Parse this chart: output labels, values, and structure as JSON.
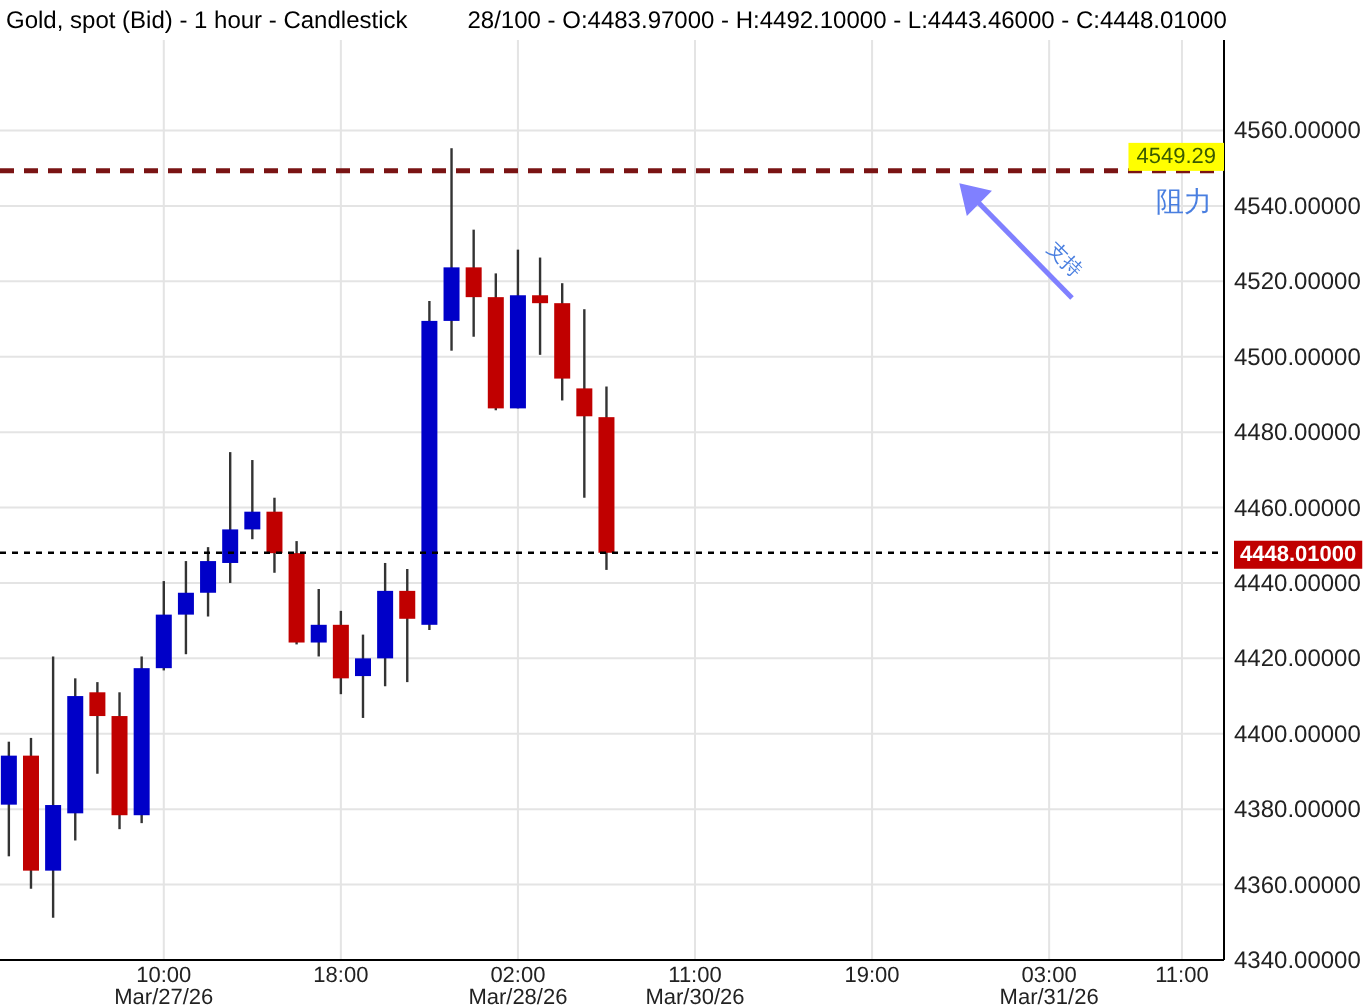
{
  "chart_data": {
    "type": "candlestick",
    "title": "Gold, spot (Bid) - 1 hour - Candlestick",
    "subtitle": "28/100 - O:4483.97000 - H:4492.10000 - L:4443.46000 - C:4448.01000",
    "categories": [
      null,
      null,
      null,
      null,
      null,
      null,
      null,
      "10:00 Mar/27/26",
      null,
      null,
      null,
      null,
      null,
      null,
      null,
      "18:00",
      null,
      null,
      null,
      null,
      null,
      null,
      null,
      "02:00 Mar/28/26",
      null,
      null,
      null,
      null,
      null,
      null,
      null,
      "11:00 Mar/30/26",
      null,
      null,
      null,
      null,
      null,
      null,
      null,
      "19:00",
      null,
      null,
      null,
      null,
      null,
      null,
      null,
      "03:00 Mar/31/26",
      null,
      null,
      null,
      null,
      null,
      "11:00",
      null
    ],
    "ohlc": [
      [
        4381.2,
        4397.9,
        4367.5,
        4394.2
      ],
      [
        4394.2,
        4398.9,
        4358.9,
        4363.7
      ],
      [
        4363.7,
        4420.5,
        4351.2,
        4381.1
      ],
      [
        4378.9,
        4414.7,
        4371.7,
        4410.0
      ],
      [
        4411.0,
        4413.7,
        4389.4,
        4404.7
      ],
      [
        4404.7,
        4411.0,
        4374.7,
        4378.4
      ],
      [
        4378.4,
        4420.5,
        4376.3,
        4417.4
      ],
      [
        4417.4,
        4440.5,
        4416.8,
        4431.6
      ],
      [
        4431.6,
        4445.8,
        4421.1,
        4437.4
      ],
      [
        4437.4,
        4449.5,
        4431.1,
        4445.8
      ],
      [
        4445.3,
        4474.7,
        4440.0,
        4454.2
      ],
      [
        4454.2,
        4472.6,
        4451.6,
        4458.9
      ],
      [
        4458.9,
        4462.6,
        4442.7,
        4447.9
      ],
      [
        4447.9,
        4451.1,
        4423.7,
        4424.2
      ],
      [
        4424.2,
        4438.4,
        4420.5,
        4428.9
      ],
      [
        4428.9,
        4432.6,
        4410.5,
        4414.7
      ],
      [
        4415.3,
        4426.3,
        4404.2,
        4420.0
      ],
      [
        4420.0,
        4445.3,
        4412.6,
        4437.9
      ],
      [
        4437.9,
        4443.7,
        4413.7,
        4430.5
      ],
      [
        4428.9,
        4514.8,
        4427.5,
        4509.5
      ],
      [
        4509.5,
        4555.3,
        4501.6,
        4523.7
      ],
      [
        4523.7,
        4533.7,
        4505.3,
        4515.8
      ],
      [
        4515.8,
        4522.1,
        4485.8,
        4486.3
      ],
      [
        4486.3,
        4528.4,
        4486.3,
        4516.3
      ],
      [
        4516.3,
        4526.3,
        4500.5,
        4514.2
      ],
      [
        4514.2,
        4519.5,
        4488.4,
        4494.2
      ],
      [
        4491.6,
        4512.6,
        4462.6,
        4484.2
      ],
      [
        4483.97,
        4492.1,
        4443.46,
        4448.01
      ],
      null,
      null,
      null,
      null,
      null,
      null,
      null,
      null,
      null,
      null,
      null,
      null,
      null,
      null,
      null,
      null,
      null,
      null,
      null,
      null,
      null,
      null,
      null,
      null,
      null,
      null,
      null
    ],
    "colors": [
      "#0000c8",
      "#c00000",
      "#0000c8",
      "#0000c8",
      "#c00000",
      "#c00000",
      "#0000c8",
      "#0000c8",
      "#0000c8",
      "#0000c8",
      "#0000c8",
      "#0000c8",
      "#c00000",
      "#c00000",
      "#0000c8",
      "#c00000",
      "#0000c8",
      "#0000c8",
      "#c00000",
      "#0000c8",
      "#0000c8",
      "#c00000",
      "#c00000",
      "#0000c8",
      "#c00000",
      "#c00000",
      "#c00000",
      "#c00000",
      null,
      null,
      null,
      null,
      null,
      null,
      null,
      null,
      null,
      null,
      null,
      null,
      null,
      null,
      null,
      null,
      null,
      null,
      null,
      null,
      null,
      null,
      null,
      null,
      null,
      null,
      null
    ],
    "ylim": [
      4340,
      4584
    ],
    "yticks": [
      {
        "value": 4340,
        "label": "4340.00000"
      },
      {
        "value": 4360,
        "label": "4360.00000"
      },
      {
        "value": 4380,
        "label": "4380.00000"
      },
      {
        "value": 4400,
        "label": "4400.00000"
      },
      {
        "value": 4420,
        "label": "4420.00000"
      },
      {
        "value": 4440,
        "label": "4440.00000"
      },
      {
        "value": 4460,
        "label": "4460.00000"
      },
      {
        "value": 4480,
        "label": "4480.00000"
      },
      {
        "value": 4500,
        "label": "4500.00000"
      },
      {
        "value": 4520,
        "label": "4520.00000"
      },
      {
        "value": 4540,
        "label": "4540.00000"
      },
      {
        "value": 4560,
        "label": "4560.00000"
      }
    ],
    "grid": true,
    "ref_lines": [
      {
        "axis": "y",
        "value": 4549.29,
        "label": "4549.29",
        "color": "#7a1414",
        "line_style": "dashed"
      },
      {
        "axis": "y",
        "value": 4448.01,
        "label": "4448.01000",
        "color": "#000000",
        "line_style": "dotted"
      }
    ],
    "annotations": [
      "阻力",
      "支持"
    ]
  }
}
